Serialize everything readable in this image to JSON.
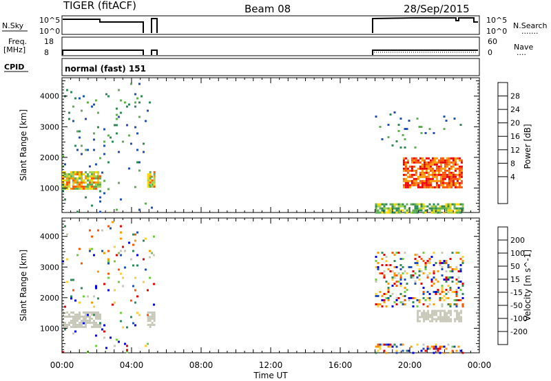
{
  "header": {
    "radar": "TIGER (fitACF)",
    "beam": "Beam 08",
    "date": "28/Sep/2015"
  },
  "nsky_panel": {
    "left_label": "N.Sky",
    "right_label": "N.Search",
    "right_dots": ".......",
    "left_ticks": [
      "10^5",
      "10^0"
    ],
    "right_ticks": [
      "10^5",
      "10^0"
    ]
  },
  "freq_panel": {
    "left_label_1": "Freq.",
    "left_label_2": "[MHz]",
    "right_label": "Nave",
    "right_dots": "....",
    "left_ticks": [
      "18",
      "8"
    ],
    "right_ticks": [
      "60",
      "0"
    ]
  },
  "cpid_panel": {
    "left_label": "CPID",
    "mode_text": "normal (fast) 151"
  },
  "x_axis": {
    "label": "Time UT",
    "tick_labels": [
      "00:00",
      "04:00",
      "08:00",
      "12:00",
      "16:00",
      "20:00",
      "00:00"
    ],
    "tick_hours": [
      0,
      4,
      8,
      12,
      16,
      20,
      24
    ],
    "range_hours": [
      0,
      24
    ]
  },
  "colors": {
    "power_scale": [
      "#0000ee",
      "#1f4fb8",
      "#2e8b57",
      "#5fae50",
      "#a8d24b",
      "#ffd700",
      "#ff9900",
      "#ff5500",
      "#ee0000"
    ],
    "velocity_scale": [
      "#ee0000",
      "#ff5500",
      "#ff9900",
      "#ffcc33",
      "#c8c8b8",
      "#6fcf3f",
      "#2e8b57",
      "#1f4fb8",
      "#0000ee"
    ]
  },
  "chart_data": [
    {
      "type": "heatmap",
      "name_hint": "power",
      "ylabel": "Slant Range [km]",
      "ylim": [
        200,
        4600
      ],
      "y_ticks": [
        1000,
        2000,
        3000,
        4000
      ],
      "xlim_hours": [
        0,
        24
      ],
      "colorbar": {
        "label": "Power [dB]",
        "ticks": [
          "4",
          "8",
          "12",
          "16",
          "20",
          "24",
          "28"
        ],
        "range": [
          0,
          32
        ]
      },
      "regions": [
        {
          "t0": 0.0,
          "t1": 2.2,
          "r0": 1000,
          "r1": 1550,
          "level": "mid"
        },
        {
          "t0": 4.9,
          "t1": 5.3,
          "r0": 1050,
          "r1": 1550,
          "level": "mid"
        },
        {
          "t0": 18.0,
          "t1": 23.0,
          "r0": 200,
          "r1": 500,
          "level": "low"
        },
        {
          "t0": 19.6,
          "t1": 23.0,
          "r0": 1000,
          "r1": 2000,
          "level": "high"
        },
        {
          "t0": 18.0,
          "t1": 23.0,
          "r0": 2300,
          "r1": 3500,
          "level": "sparse"
        },
        {
          "t0": 0.0,
          "t1": 5.3,
          "r0": 200,
          "r1": 4500,
          "level": "sparse"
        }
      ]
    },
    {
      "type": "heatmap",
      "name_hint": "velocity",
      "ylabel": "Slant Range [km]",
      "ylim": [
        200,
        4600
      ],
      "y_ticks": [
        1000,
        2000,
        3000,
        4000
      ],
      "xlim_hours": [
        0,
        24
      ],
      "colorbar": {
        "label": "Velocity [m s^-1]",
        "ticks": [
          "200",
          "100",
          "50",
          "15",
          "-15",
          "-50",
          "-100",
          "-200"
        ],
        "range": [
          -250,
          250
        ]
      },
      "regions": [
        {
          "t0": 0.0,
          "t1": 2.2,
          "r0": 1050,
          "r1": 1550,
          "level": "ground"
        },
        {
          "t0": 4.9,
          "t1": 5.3,
          "r0": 1050,
          "r1": 1550,
          "level": "ground"
        },
        {
          "t0": 20.4,
          "t1": 23.0,
          "r0": 1250,
          "r1": 1600,
          "level": "ground"
        },
        {
          "t0": 18.0,
          "t1": 23.0,
          "r0": 200,
          "r1": 500,
          "level": "mixed"
        },
        {
          "t0": 18.0,
          "t1": 23.0,
          "r0": 1700,
          "r1": 3500,
          "level": "mixed"
        },
        {
          "t0": 0.0,
          "t1": 5.3,
          "r0": 200,
          "r1": 4500,
          "level": "sparse"
        }
      ]
    }
  ]
}
